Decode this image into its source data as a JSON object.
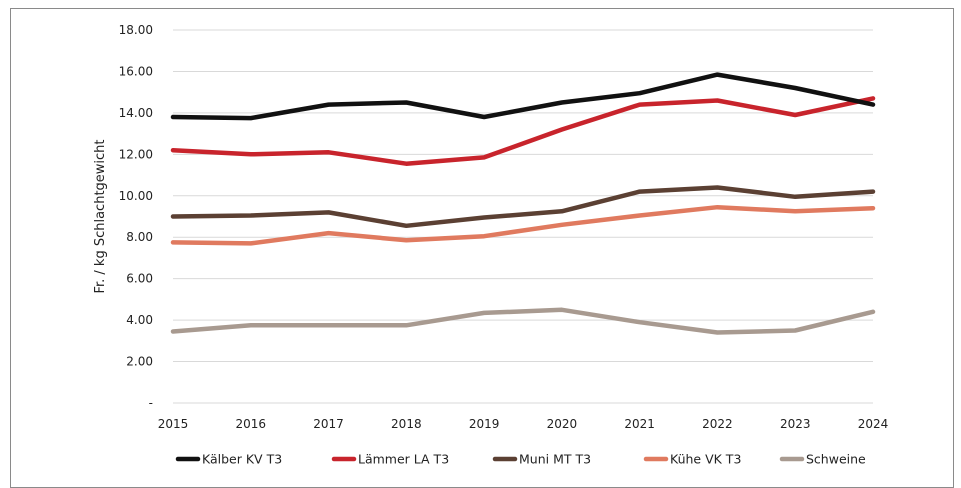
{
  "chart_data": {
    "type": "line",
    "ylabel": "Fr. / kg Schlachtgewicht",
    "xlabel": "",
    "title": "",
    "x": [
      "2015",
      "2016",
      "2017",
      "2018",
      "2019",
      "2020",
      "2021",
      "2022",
      "2023",
      "2024"
    ],
    "ylim": [
      0,
      18
    ],
    "yticks": [
      0,
      2,
      4,
      6,
      8,
      10,
      12,
      14,
      16,
      18
    ],
    "ytick_labels": [
      "-",
      "2.00",
      "4.00",
      "6.00",
      "8.00",
      "10.00",
      "12.00",
      "14.00",
      "16.00",
      "18.00"
    ],
    "grid": "horizontal",
    "legend_position": "bottom",
    "series": [
      {
        "name": "Kälber KV T3",
        "color": "#111111",
        "values": [
          13.8,
          13.75,
          14.4,
          14.5,
          13.8,
          14.5,
          14.95,
          15.85,
          15.2,
          14.4
        ]
      },
      {
        "name": "Lämmer LA T3",
        "color": "#c8242c",
        "values": [
          12.2,
          12.0,
          12.1,
          11.55,
          11.85,
          13.2,
          14.4,
          14.6,
          13.9,
          14.7
        ]
      },
      {
        "name": "Muni MT T3",
        "color": "#5b4033",
        "values": [
          9.0,
          9.05,
          9.2,
          8.55,
          8.95,
          9.25,
          10.2,
          10.4,
          9.95,
          10.2
        ]
      },
      {
        "name": "Kühe VK T3",
        "color": "#e07a5f",
        "values": [
          7.75,
          7.7,
          8.2,
          7.85,
          8.05,
          8.6,
          9.05,
          9.45,
          9.25,
          9.4
        ]
      },
      {
        "name": "Schweine",
        "color": "#a89a90",
        "values": [
          3.45,
          3.75,
          3.75,
          3.75,
          4.35,
          4.5,
          3.9,
          3.4,
          3.5,
          4.4
        ]
      }
    ]
  }
}
